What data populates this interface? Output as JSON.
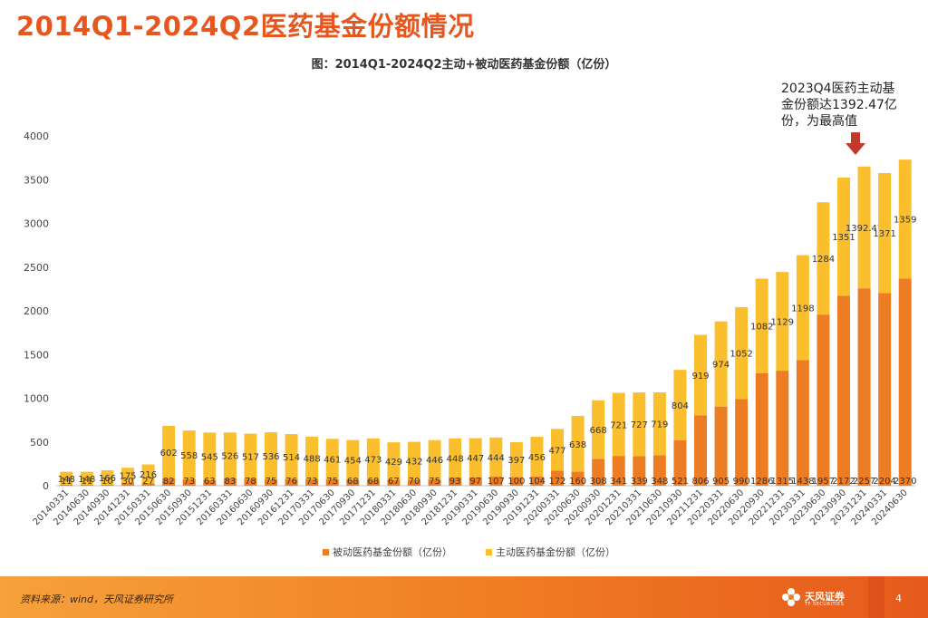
{
  "slide_title": "2014Q1-2024Q2医药基金份额情况",
  "annotation": [
    "2023Q4医药主动基",
    "金份额达1392.47亿",
    "份，为最高值"
  ],
  "footer": {
    "source": "资料来源：wind，天风证券研究所",
    "logo_text": "天风证券",
    "logo_sub": "TF SECURITIES",
    "page": "4"
  },
  "colors": {
    "passive": "#ed7d22",
    "active": "#fbbf2d",
    "title": "#e8561f",
    "arrow": "#c0392b"
  },
  "chart_data": {
    "type": "bar",
    "stacked": true,
    "title": "图：2014Q1-2024Q2主动+被动医药基金份额（亿份）",
    "categories": [
      "20140331",
      "20140630",
      "20140930",
      "20141231",
      "20150331",
      "20150630",
      "20150930",
      "20151231",
      "20160331",
      "20160630",
      "20160930",
      "20161231",
      "20170331",
      "20170630",
      "20170930",
      "20171231",
      "20180331",
      "20180630",
      "20180930",
      "20181231",
      "20190331",
      "20190630",
      "20190930",
      "20191231",
      "20200331",
      "20200630",
      "20200930",
      "20201231",
      "20210331",
      "20210630",
      "20210930",
      "20211231",
      "20220331",
      "20220630",
      "20220930",
      "20221231",
      "20230331",
      "20230630",
      "20230930",
      "20231231",
      "20240331",
      "20240630"
    ],
    "series": [
      {
        "name": "被动医药基金份额（亿份）",
        "color": "#ed7d22",
        "values": [
          11,
          11,
          10,
          30,
          27,
          82,
          73,
          63,
          83,
          78,
          75,
          76,
          73,
          75,
          68,
          68,
          67,
          70,
          75,
          93,
          97,
          107,
          100,
          104,
          172,
          160,
          308,
          341,
          339,
          348,
          521,
          806,
          905,
          990,
          1286,
          1315,
          1438,
          1957,
          2172,
          2257,
          2204,
          2370
        ],
        "labels": [
          "11",
          "11",
          "10",
          "30",
          "27",
          "82",
          "73",
          "63",
          "83",
          "78",
          "75",
          "76",
          "73",
          "75",
          "68",
          "68",
          "67",
          "70",
          "75",
          "93",
          "97",
          "107",
          "100",
          "104",
          "172",
          "160",
          "308",
          "341",
          "339",
          "348",
          "521",
          "806",
          "905",
          "990",
          "1286",
          "1315",
          "1438",
          "1957",
          "2172",
          "2257",
          "2204",
          "2370"
        ]
      },
      {
        "name": "主动医药基金份额（亿份）",
        "color": "#fbbf2d",
        "values": [
          148,
          148,
          166,
          175,
          216,
          602,
          558,
          545,
          526,
          517,
          536,
          514,
          488,
          461,
          454,
          473,
          429,
          432,
          446,
          448,
          447,
          444,
          397,
          456,
          477,
          638,
          668,
          721,
          727,
          719,
          804,
          919,
          974,
          1052,
          1082,
          1129,
          1198,
          1284,
          1351,
          1392.47,
          1371,
          1359
        ],
        "labels": [
          "148",
          "148",
          "166",
          "175",
          "216",
          "602",
          "558",
          "545",
          "526",
          "517",
          "536",
          "514",
          "488",
          "461",
          "454",
          "473",
          "429",
          "432",
          "446",
          "448",
          "447",
          "444",
          "397",
          "456",
          "477",
          "638",
          "668",
          "721",
          "727",
          "719",
          "804",
          "919",
          "974",
          "1052",
          "1082",
          "1129",
          "1198",
          "1284",
          "1351",
          "1392.47",
          "1371",
          "1359"
        ]
      }
    ],
    "ylim": [
      0,
      4000
    ],
    "yticks": [
      0,
      500,
      1000,
      1500,
      2000,
      2500,
      3000,
      3500,
      4000
    ],
    "legend_position": "bottom-center"
  }
}
